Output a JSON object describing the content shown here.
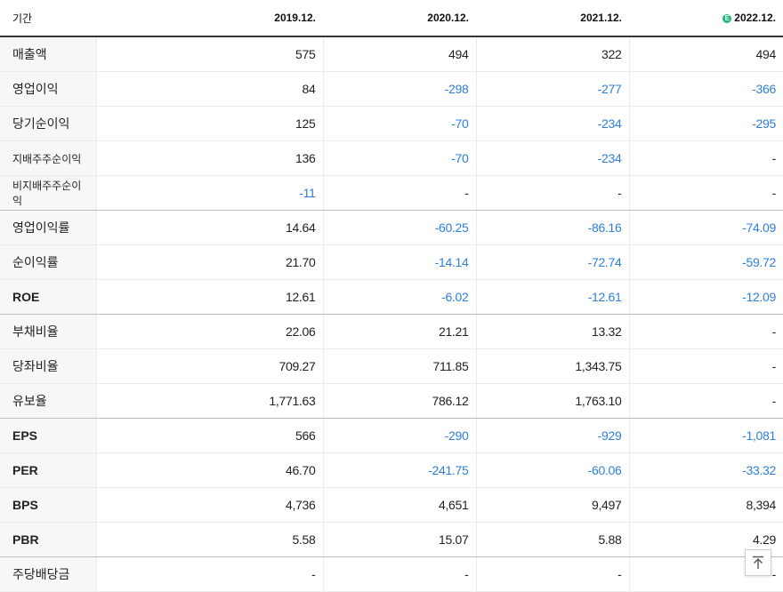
{
  "header": {
    "label": "기간",
    "periods": [
      "2019.12.",
      "2020.12.",
      "2021.12.",
      "2022.12."
    ],
    "estimate_badge": "E"
  },
  "rows": [
    {
      "label": "매출액",
      "values": [
        "575",
        "494",
        "322",
        "494"
      ]
    },
    {
      "label": "영업이익",
      "values": [
        "84",
        "-298",
        "-277",
        "-366"
      ]
    },
    {
      "label": "당기순이익",
      "values": [
        "125",
        "-70",
        "-234",
        "-295"
      ]
    },
    {
      "label": "지배주주순이익",
      "values": [
        "136",
        "-70",
        "-234",
        "-"
      ]
    },
    {
      "label": "비지배주주순이익",
      "values": [
        "-11",
        "-",
        "-",
        "-"
      ]
    },
    {
      "label": "영업이익률",
      "values": [
        "14.64",
        "-60.25",
        "-86.16",
        "-74.09"
      ]
    },
    {
      "label": "순이익률",
      "values": [
        "21.70",
        "-14.14",
        "-72.74",
        "-59.72"
      ]
    },
    {
      "label": "ROE",
      "values": [
        "12.61",
        "-6.02",
        "-12.61",
        "-12.09"
      ]
    },
    {
      "label": "부채비율",
      "values": [
        "22.06",
        "21.21",
        "13.32",
        "-"
      ]
    },
    {
      "label": "당좌비율",
      "values": [
        "709.27",
        "711.85",
        "1,343.75",
        "-"
      ]
    },
    {
      "label": "유보율",
      "values": [
        "1,771.63",
        "786.12",
        "1,763.10",
        "-"
      ]
    },
    {
      "label": "EPS",
      "values": [
        "566",
        "-290",
        "-929",
        "-1,081"
      ]
    },
    {
      "label": "PER",
      "values": [
        "46.70",
        "-241.75",
        "-60.06",
        "-33.32"
      ]
    },
    {
      "label": "BPS",
      "values": [
        "4,736",
        "4,651",
        "9,497",
        "8,394"
      ]
    },
    {
      "label": "PBR",
      "values": [
        "5.58",
        "15.07",
        "5.88",
        "4.29"
      ]
    },
    {
      "label": "주당배당금",
      "values": [
        "-",
        "-",
        "-",
        "-"
      ]
    }
  ],
  "colors": {
    "negative": "#2d7fd8",
    "estimate_badge": "#1fb87a"
  },
  "scroll_top_icon": "arrow-up-icon"
}
